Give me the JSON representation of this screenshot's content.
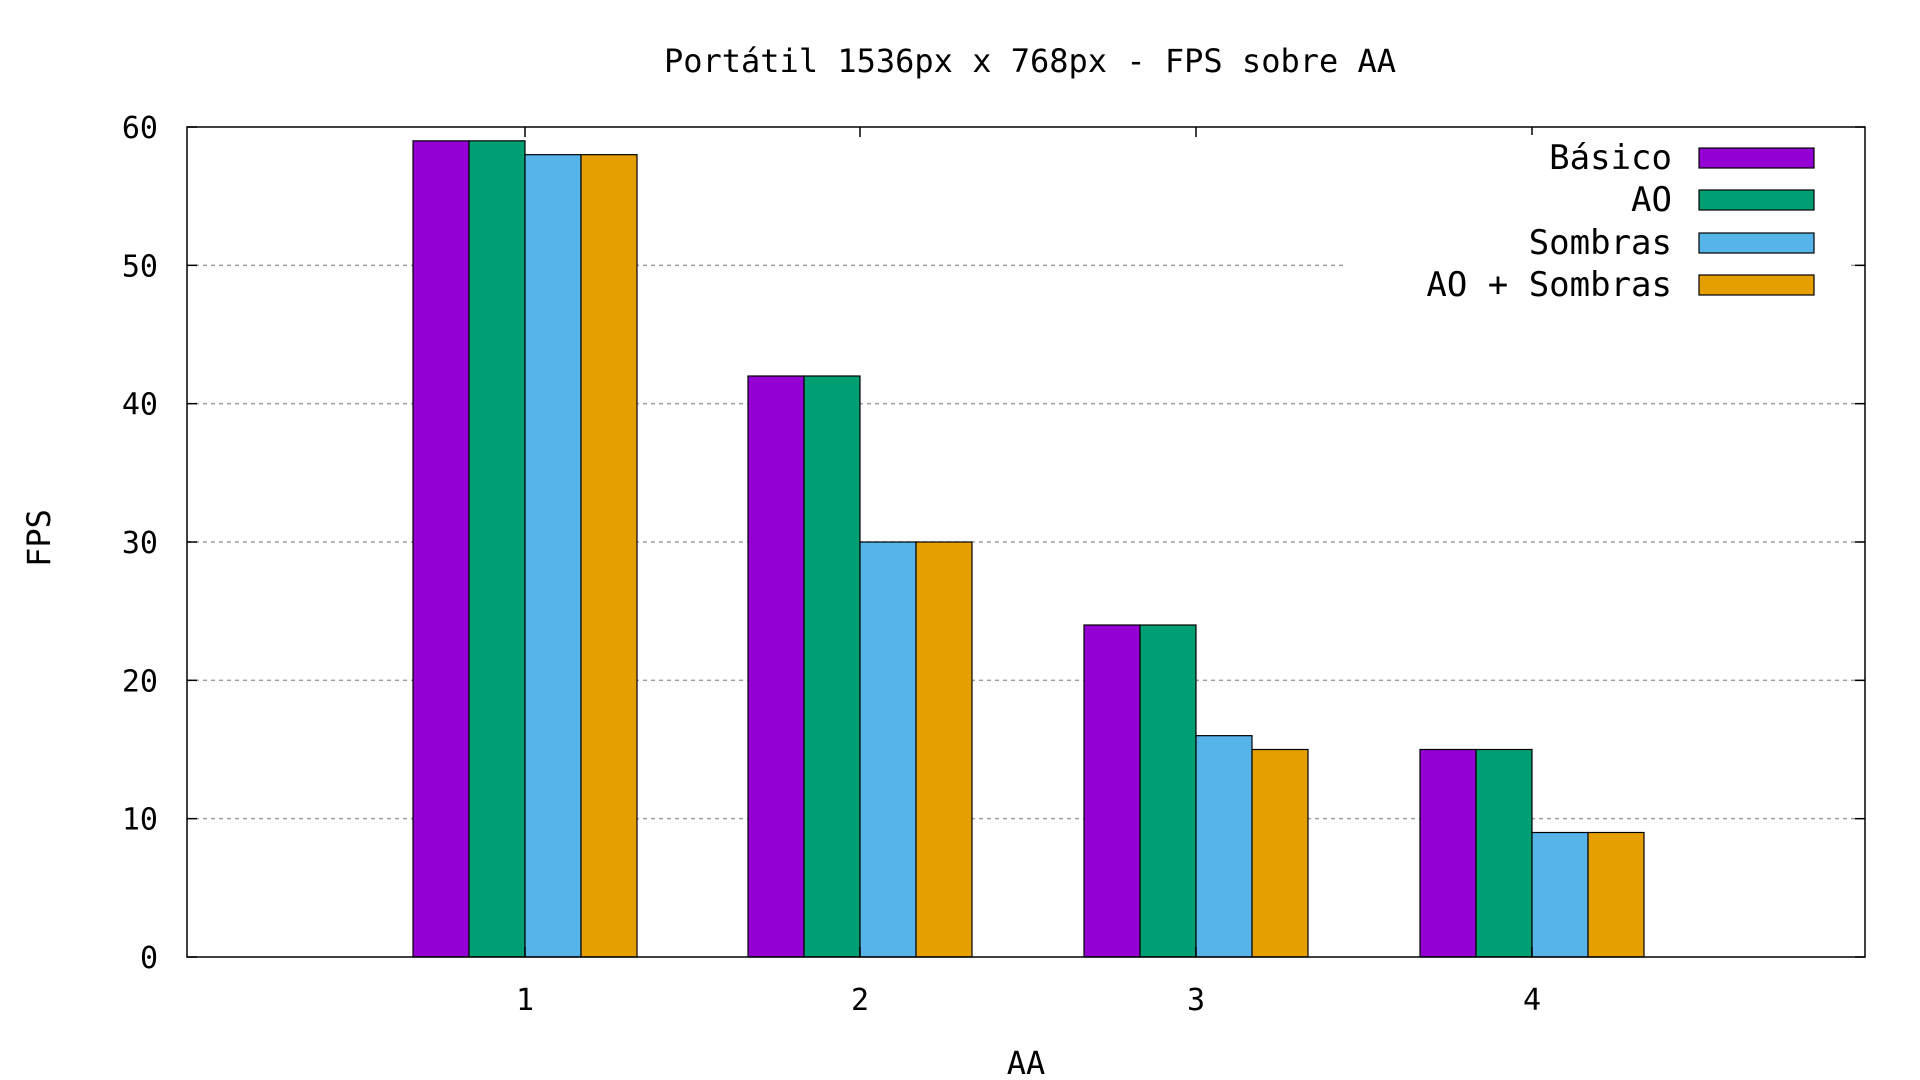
{
  "chart_data": {
    "type": "bar",
    "title": "Portátil 1536px x 768px - FPS sobre AA",
    "xlabel": "AA",
    "ylabel": "FPS",
    "categories": [
      "1",
      "2",
      "3",
      "4"
    ],
    "ylim": [
      0,
      60
    ],
    "yticks": [
      "0",
      "10",
      "20",
      "30",
      "40",
      "50",
      "60"
    ],
    "grid": true,
    "legend_position": "top-right",
    "series": [
      {
        "name": "Básico",
        "color": "#9400d3",
        "values": [
          59,
          42,
          24,
          15
        ]
      },
      {
        "name": "AO",
        "color": "#009e73",
        "values": [
          59,
          42,
          24,
          15
        ]
      },
      {
        "name": "Sombras",
        "color": "#56b4e9",
        "values": [
          58,
          30,
          16,
          9
        ]
      },
      {
        "name": "AO + Sombras",
        "color": "#e69f00",
        "values": [
          58,
          30,
          15,
          9
        ]
      }
    ]
  }
}
